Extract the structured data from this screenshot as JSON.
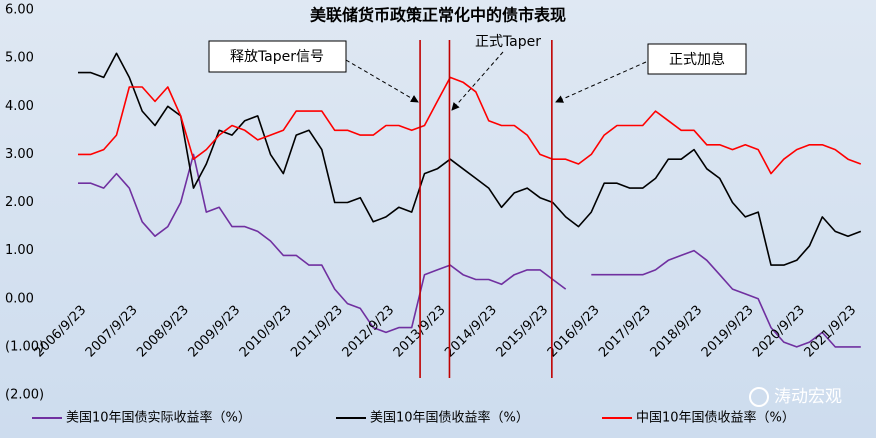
{
  "chart_data": {
    "type": "line",
    "title": "美联储货币政策正常化中的债市表现",
    "x": [
      "2006/9/23",
      "2006/12/23",
      "2007/3/23",
      "2007/6/23",
      "2007/9/23",
      "2007/12/23",
      "2008/3/23",
      "2008/6/23",
      "2008/9/23",
      "2008/12/23",
      "2009/3/23",
      "2009/6/23",
      "2009/9/23",
      "2009/12/23",
      "2010/3/23",
      "2010/6/23",
      "2010/9/23",
      "2010/12/23",
      "2011/3/23",
      "2011/6/23",
      "2011/9/23",
      "2011/12/23",
      "2012/3/23",
      "2012/6/23",
      "2012/9/23",
      "2012/12/23",
      "2013/3/23",
      "2013/6/23",
      "2013/9/23",
      "2013/12/23",
      "2014/3/23",
      "2014/6/23",
      "2014/9/23",
      "2014/12/23",
      "2015/3/23",
      "2015/6/23",
      "2015/9/23",
      "2015/12/23",
      "2016/3/23",
      "2016/6/23",
      "2016/9/23",
      "2016/12/23",
      "2017/3/23",
      "2017/6/23",
      "2017/9/23",
      "2017/12/23",
      "2018/3/23",
      "2018/6/23",
      "2018/9/23",
      "2018/12/23",
      "2019/3/23",
      "2019/6/23",
      "2019/9/23",
      "2019/12/23",
      "2020/3/23",
      "2020/6/23",
      "2020/9/23",
      "2020/12/23",
      "2021/3/23",
      "2021/6/23",
      "2021/9/23",
      "2021/12/23"
    ],
    "series": [
      {
        "name": "美国10年国债实际收益率（%）",
        "color": "#7030a0",
        "values": [
          2.4,
          2.4,
          2.3,
          2.6,
          2.3,
          1.6,
          1.3,
          1.5,
          2.0,
          3.0,
          1.8,
          1.9,
          1.5,
          1.5,
          1.4,
          1.2,
          0.9,
          0.9,
          0.7,
          0.7,
          0.2,
          -0.1,
          -0.2,
          -0.6,
          -0.7,
          -0.6,
          -0.6,
          0.5,
          0.6,
          0.7,
          0.5,
          0.4,
          0.4,
          0.3,
          0.5,
          0.6,
          0.6,
          0.4,
          0.2,
          null,
          0.5,
          0.5,
          0.5,
          0.5,
          0.5,
          0.6,
          0.8,
          0.9,
          1.0,
          0.8,
          0.5,
          0.2,
          0.1,
          0.0,
          -0.6,
          -0.9,
          -1.0,
          -0.9,
          -0.7,
          -1.0,
          -1.0,
          -1.0
        ]
      },
      {
        "name": "美国10年国债收益率（%）",
        "color": "#000000",
        "values": [
          4.7,
          4.7,
          4.6,
          5.1,
          4.6,
          3.9,
          3.6,
          4.0,
          3.8,
          2.3,
          2.8,
          3.5,
          3.4,
          3.7,
          3.8,
          3.0,
          2.6,
          3.4,
          3.5,
          3.1,
          2.0,
          2.0,
          2.1,
          1.6,
          1.7,
          1.9,
          1.8,
          2.6,
          2.7,
          2.9,
          2.7,
          2.5,
          2.3,
          1.9,
          2.2,
          2.3,
          2.1,
          2.0,
          1.7,
          1.5,
          1.8,
          2.4,
          2.4,
          2.3,
          2.3,
          2.5,
          2.9,
          2.9,
          3.1,
          2.7,
          2.5,
          2.0,
          1.7,
          1.8,
          0.7,
          0.7,
          0.8,
          1.1,
          1.7,
          1.4,
          1.3,
          1.4
        ]
      },
      {
        "name": "中国10年国债收益率（%）",
        "color": "#ff0000",
        "values": [
          3.0,
          3.0,
          3.1,
          3.4,
          4.4,
          4.4,
          4.1,
          4.4,
          3.8,
          2.9,
          3.1,
          3.4,
          3.6,
          3.5,
          3.3,
          3.4,
          3.5,
          3.9,
          3.9,
          3.9,
          3.5,
          3.5,
          3.4,
          3.4,
          3.6,
          3.6,
          3.5,
          3.6,
          4.1,
          4.6,
          4.5,
          4.3,
          3.7,
          3.6,
          3.6,
          3.4,
          3.0,
          2.9,
          2.9,
          2.8,
          3.0,
          3.4,
          3.6,
          3.6,
          3.6,
          3.9,
          3.7,
          3.5,
          3.5,
          3.2,
          3.2,
          3.1,
          3.2,
          3.1,
          2.6,
          2.9,
          3.1,
          3.2,
          3.2,
          3.1,
          2.9,
          2.8
        ]
      }
    ],
    "xticks": [
      "2006/9/23",
      "2007/9/23",
      "2008/9/23",
      "2009/9/23",
      "2010/9/23",
      "2011/9/23",
      "2012/9/23",
      "2013/9/23",
      "2014/9/23",
      "2015/9/23",
      "2016/9/23",
      "2017/9/23",
      "2018/9/23",
      "2019/9/23",
      "2020/9/23",
      "2021/9/23"
    ],
    "ylim": [
      -2,
      6
    ],
    "yticks": [
      {
        "value": 6,
        "label": "6.00"
      },
      {
        "value": 5,
        "label": "5.00"
      },
      {
        "value": 4,
        "label": "4.00"
      },
      {
        "value": 3,
        "label": "3.00"
      },
      {
        "value": 2,
        "label": "2.00"
      },
      {
        "value": 1,
        "label": "1.00"
      },
      {
        "value": 0,
        "label": "0.00"
      },
      {
        "value": -1,
        "label": "(1.00)"
      },
      {
        "value": -2,
        "label": "(2.00)"
      }
    ],
    "negative_tick_color": "#c00000",
    "event_line_color": "#c00000",
    "annotations": [
      {
        "text": "释放Taper信号",
        "x": "2013/5/22"
      },
      {
        "text": "正式Taper",
        "x": "2013/12/18"
      },
      {
        "text": "正式加息",
        "x": "2015/12/16"
      }
    ],
    "legend": "bottom",
    "watermark": "涛动宏观"
  }
}
